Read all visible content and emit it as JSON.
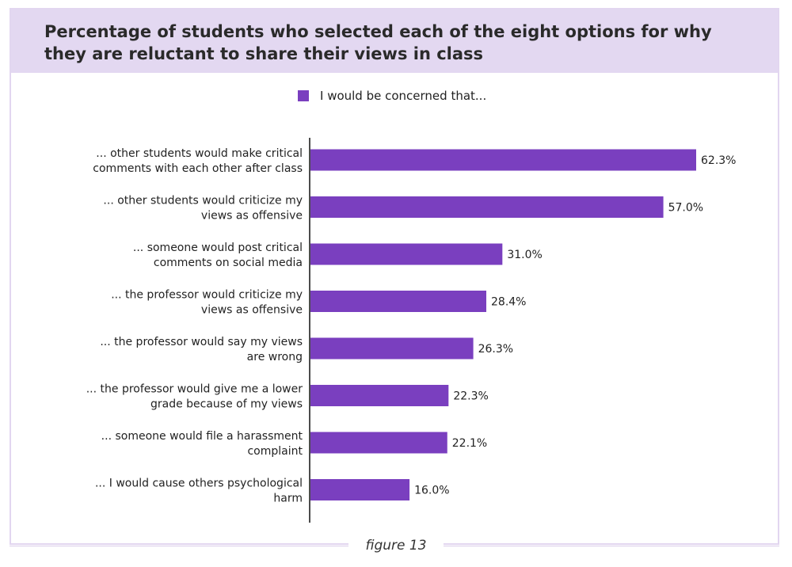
{
  "chart_data": {
    "type": "bar",
    "orientation": "horizontal",
    "title": "Percentage of students who selected each of the eight options for why they are reluctant to share their views in class",
    "legend": {
      "label": "I would be concerned that...",
      "placement": "top"
    },
    "categories": [
      [
        "... other students would make critical",
        "comments with each other after class"
      ],
      [
        "... other students would criticize my",
        "views as offensive"
      ],
      [
        "... someone would post critical",
        "comments on social media"
      ],
      [
        "... the professor would criticize my",
        "views as offensive"
      ],
      [
        "... the professor would say my views",
        "are wrong"
      ],
      [
        "... the professor would give me a lower",
        "grade because of my views"
      ],
      [
        "... someone would file a harassment",
        "complaint"
      ],
      [
        "... I would cause others psychological",
        "harm"
      ]
    ],
    "values": [
      62.3,
      57.0,
      31.0,
      28.4,
      26.3,
      22.3,
      22.1,
      16.0
    ],
    "value_labels": [
      "62.3%",
      "57.0%",
      "31.0%",
      "28.4%",
      "26.3%",
      "22.3%",
      "22.1%",
      "16.0%"
    ],
    "xlim": [
      0,
      65
    ],
    "grid": false,
    "bar_color": "#7a3fbf"
  },
  "caption": "figure 13"
}
